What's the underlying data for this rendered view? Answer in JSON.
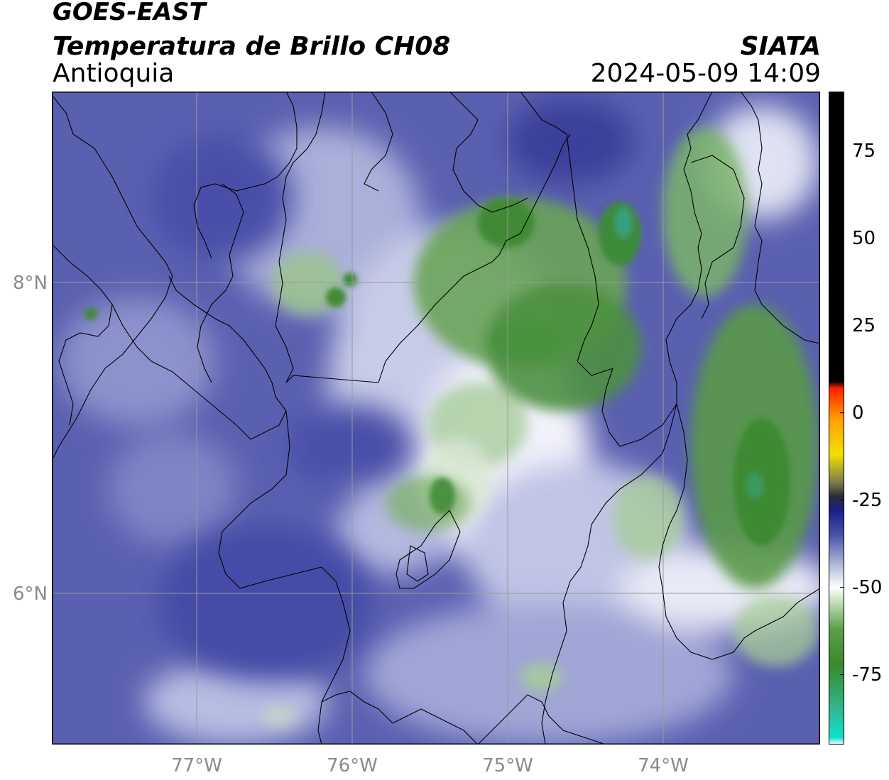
{
  "header": {
    "satellite": "GOES-EAST",
    "product": "Temperatura de Brillo CH08",
    "region": "Antioquia",
    "organization": "SIATA",
    "datetime": "2024-05-09 14:09"
  },
  "map": {
    "lat_labels": [
      "8°N",
      "6°N"
    ],
    "lon_labels": [
      "77°W",
      "76°W",
      "75°W",
      "74°W"
    ],
    "gridlines": true
  },
  "colorbar": {
    "ticks": [
      "75",
      "50",
      "25",
      "0",
      "-25",
      "-50",
      "-75"
    ],
    "range": [
      -95,
      92
    ],
    "stops": [
      {
        "v": -95,
        "c": "#ffffff"
      },
      {
        "v": -93,
        "c": "#10e0d0"
      },
      {
        "v": -85,
        "c": "#30b890"
      },
      {
        "v": -72,
        "c": "#3a8a2a"
      },
      {
        "v": -62,
        "c": "#5aa048"
      },
      {
        "v": -55,
        "c": "#b8d8b0"
      },
      {
        "v": -50,
        "c": "#ffffff"
      },
      {
        "v": -42,
        "c": "#9ea8d0"
      },
      {
        "v": -35,
        "c": "#4a52a8"
      },
      {
        "v": -28,
        "c": "#1a1f88"
      },
      {
        "v": -24,
        "c": "#2a2a38"
      },
      {
        "v": -20,
        "c": "#7a7a50"
      },
      {
        "v": -12,
        "c": "#f0e000"
      },
      {
        "v": -2,
        "c": "#ffa000"
      },
      {
        "v": 7,
        "c": "#ff2000"
      },
      {
        "v": 9,
        "c": "#000000"
      },
      {
        "v": 92,
        "c": "#000000"
      }
    ]
  }
}
